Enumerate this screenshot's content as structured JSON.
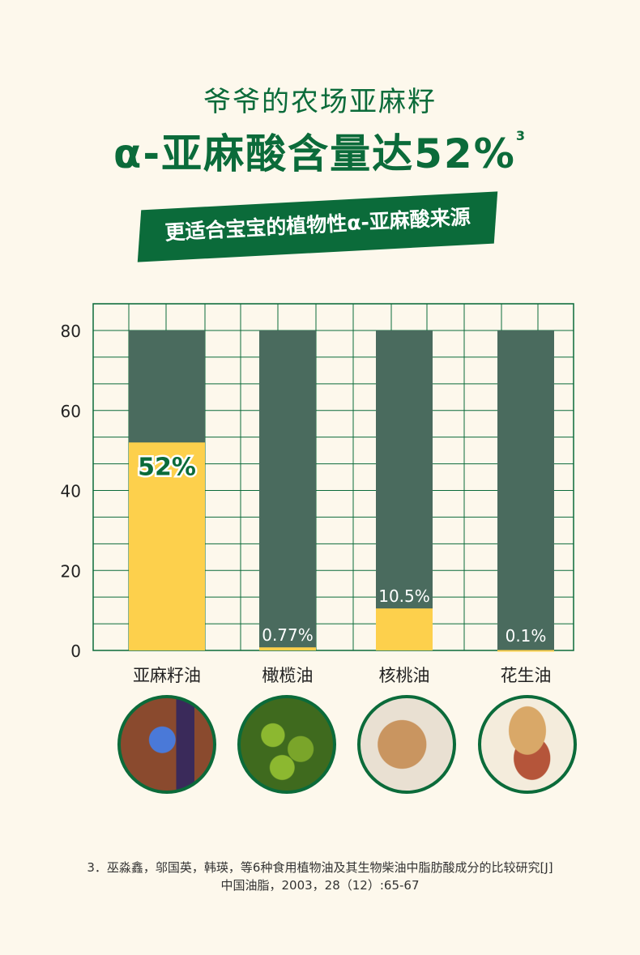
{
  "header": {
    "title": "爷爷的农场亚麻籽",
    "headline": "α-亚麻酸含量达52%",
    "headline_sup": "3",
    "banner": "更适合宝宝的植物性α-亚麻酸来源"
  },
  "chart_data": {
    "type": "bar",
    "categories": [
      "亚麻籽油",
      "橄榄油",
      "核桃油",
      "花生油"
    ],
    "values": [
      52,
      0.77,
      10.5,
      0.1
    ],
    "data_labels": [
      "52%",
      "0.77%",
      "10.5%",
      "0.1%"
    ],
    "background_value": 80,
    "ylim": [
      0,
      80
    ],
    "yticks": [
      0,
      20,
      40,
      60,
      80
    ],
    "grid": true,
    "colors": {
      "value": "#fdd04c",
      "background": "#4a6b5e",
      "grid": "#0b6b3a",
      "highlight_label": "#0b6b3a"
    }
  },
  "footer": {
    "line1": "3．巫淼鑫，邬国英，韩瑛，等6种食用植物油及其生物柴油中脂肪酸成分的比较研究[J]",
    "line2": "中国油脂，2003，28（12）:65-67"
  }
}
